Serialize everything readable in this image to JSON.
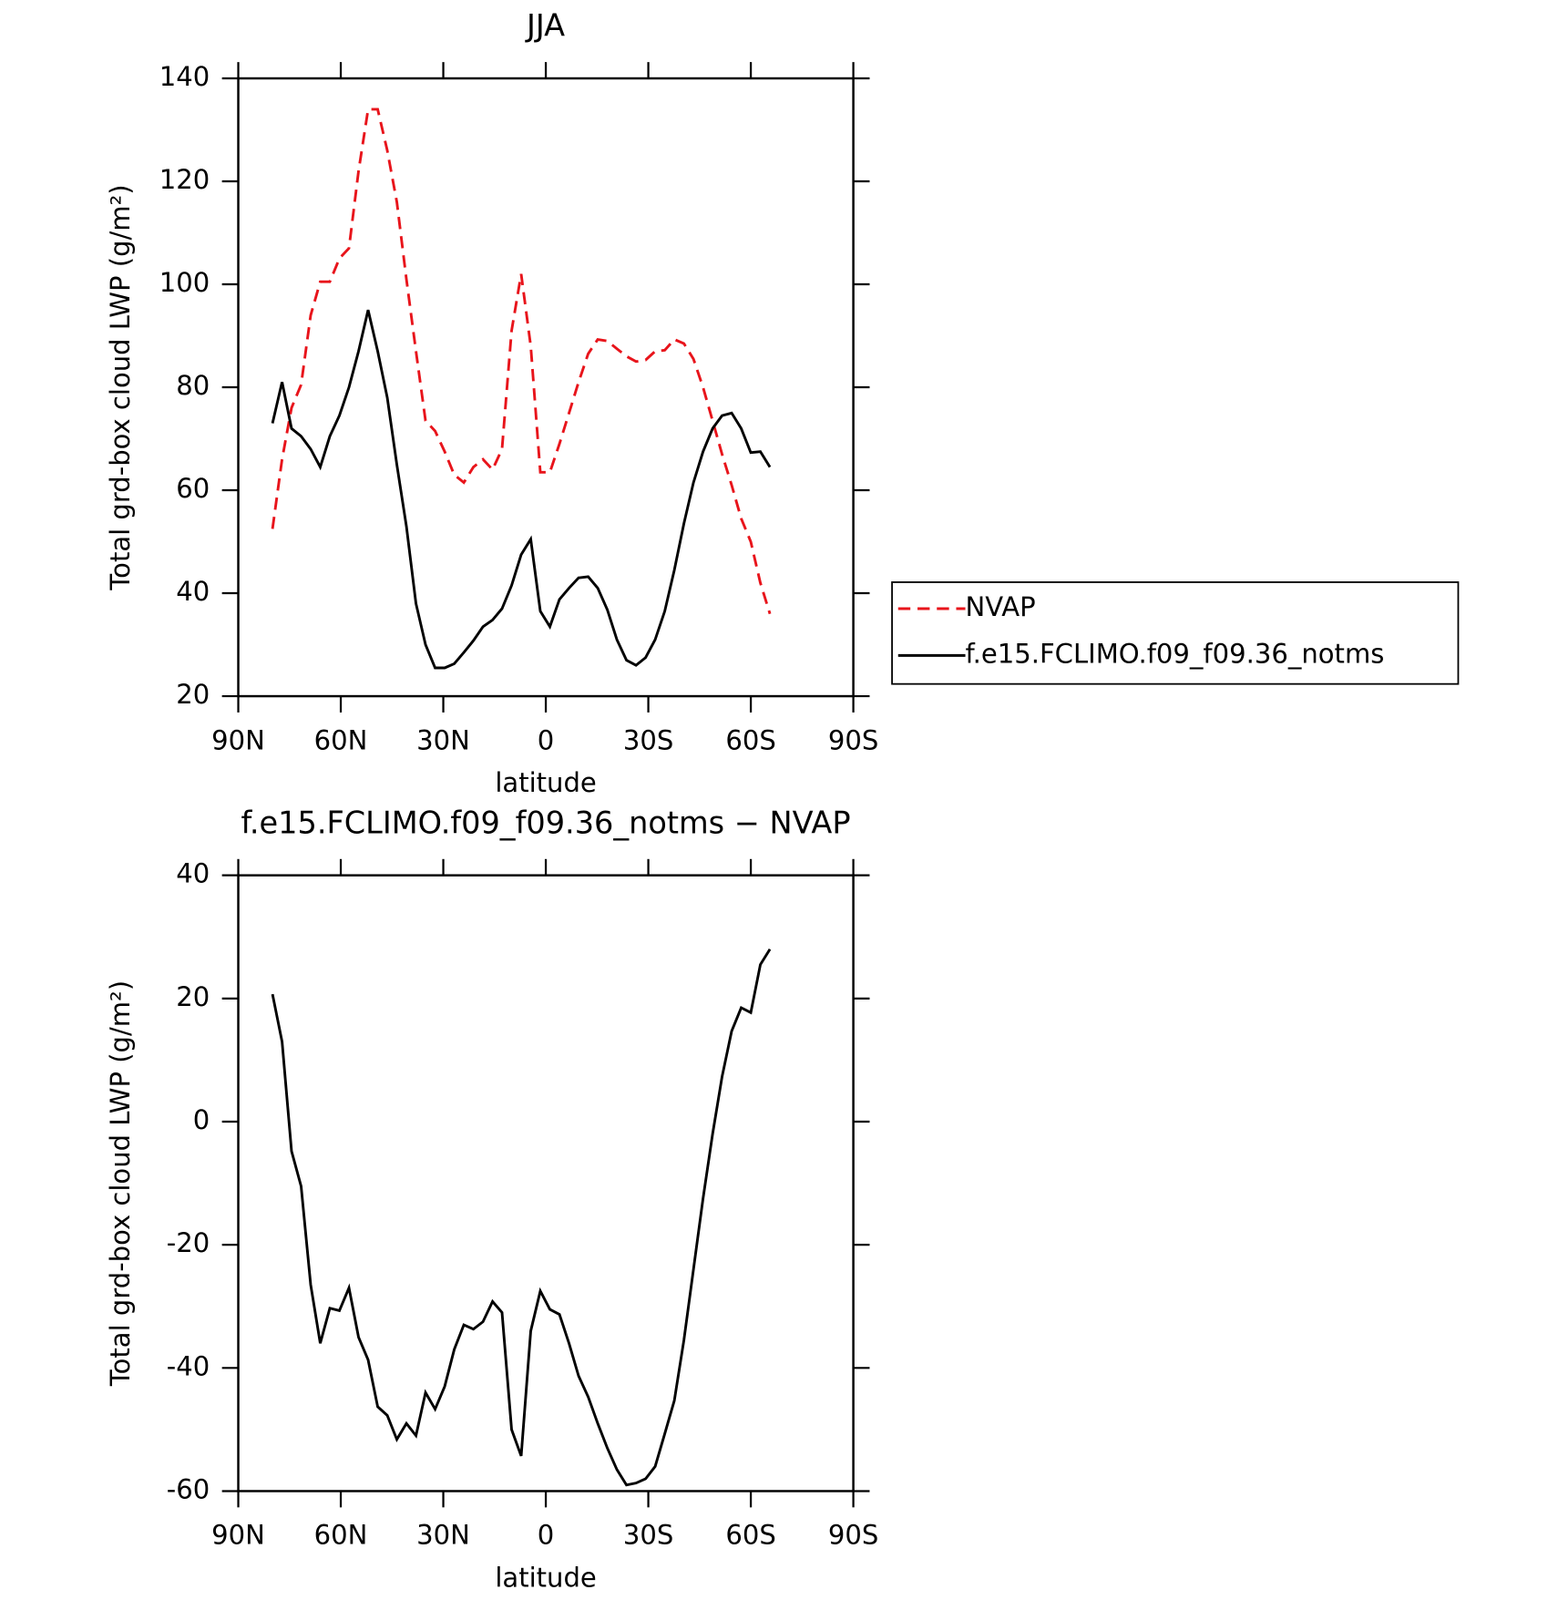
{
  "chart_data": [
    {
      "type": "line",
      "title": "JJA",
      "xlabel": "latitude",
      "ylabel": "Total grd-box cloud LWP (g/m²)",
      "x": [
        80,
        77.2,
        74.4,
        71.6,
        68.8,
        66,
        63.2,
        60.4,
        57.6,
        54.8,
        52,
        49.2,
        46.4,
        43.6,
        40.8,
        38,
        35.2,
        32.4,
        29.6,
        26.8,
        24,
        21.2,
        18.4,
        15.6,
        12.8,
        10,
        7.2,
        4.4,
        1.6,
        -1.2,
        -4,
        -6.8,
        -9.6,
        -12.4,
        -15.2,
        -18,
        -20.8,
        -23.6,
        -26.4,
        -29.2,
        -32,
        -34.8,
        -37.6,
        -40.4,
        -43.2,
        -46,
        -48.8,
        -51.6,
        -54.4,
        -57.2,
        -60,
        -62.8,
        -65.6
      ],
      "series": [
        {
          "name": "NVAP",
          "color": "#e8141b",
          "linestyle": "dashed",
          "values": [
            52.5,
            66,
            76,
            80.5,
            94,
            100.5,
            100.5,
            105,
            107,
            122,
            134,
            134,
            126,
            116,
            101,
            87,
            73.5,
            71.5,
            67.5,
            63,
            61.5,
            64.5,
            66,
            64,
            68,
            91,
            102,
            88,
            63.5,
            63.5,
            69,
            75,
            81,
            86.5,
            89.3,
            89,
            87.5,
            86,
            85,
            85.3,
            87,
            87.2,
            89.3,
            88.5,
            85.5,
            80,
            73.5,
            67,
            61,
            54.5,
            50,
            42,
            36
          ]
        },
        {
          "name": "f.e15.FCLIMO.f09_f09.36_notms",
          "color": "#000000",
          "linestyle": "solid",
          "values": [
            73,
            81,
            72,
            70.5,
            68,
            64.5,
            70.5,
            74.5,
            80,
            87,
            95,
            87,
            78,
            65,
            53,
            38,
            30,
            25.5,
            25.5,
            26.3,
            28.5,
            30.8,
            33.5,
            34.8,
            37,
            41.5,
            47.5,
            50.5,
            36.5,
            33.5,
            38.8,
            41,
            43,
            43.2,
            41,
            36.8,
            31,
            27,
            26,
            27.5,
            31,
            36.5,
            44.5,
            53.5,
            61.5,
            67.5,
            72,
            74.5,
            75,
            72,
            67.3,
            67.5,
            64.5
          ]
        }
      ],
      "xlim": [
        90,
        -90
      ],
      "xticks": [
        {
          "value": 90,
          "label": "90N"
        },
        {
          "value": 60,
          "label": "60N"
        },
        {
          "value": 30,
          "label": "30N"
        },
        0,
        {
          "value": -30,
          "label": "30S"
        },
        {
          "value": -60,
          "label": "60S"
        },
        {
          "value": -90,
          "label": "90S"
        }
      ],
      "ylim": [
        20,
        140
      ],
      "yticks": [
        20,
        40,
        60,
        80,
        100,
        120,
        140
      ],
      "legend": "right"
    },
    {
      "type": "line",
      "title": "f.e15.FCLIMO.f09_f09.36_notms − NVAP",
      "xlabel": "latitude",
      "ylabel": "Total grd-box cloud LWP (g/m²)",
      "x": [
        80,
        77.2,
        74.4,
        71.6,
        68.8,
        66,
        63.2,
        60.4,
        57.6,
        54.8,
        52,
        49.2,
        46.4,
        43.6,
        40.8,
        38,
        35.2,
        32.4,
        29.6,
        26.8,
        24,
        21.2,
        18.4,
        15.6,
        12.8,
        10,
        7.2,
        4.4,
        1.6,
        -1.2,
        -4,
        -6.8,
        -9.6,
        -12.4,
        -15.2,
        -18,
        -20.8,
        -23.6,
        -26.4,
        -29.2,
        -32,
        -34.8,
        -37.6,
        -40.4,
        -43.2,
        -46,
        -48.8,
        -51.6,
        -54.4,
        -57.2,
        -60,
        -62.8,
        -65.6
      ],
      "series": [
        {
          "color": "#000000",
          "linestyle": "solid",
          "values": [
            20.7,
            13,
            -4.8,
            -10.5,
            -26.5,
            -36,
            -30.3,
            -30.7,
            -27,
            -35,
            -38.7,
            -46.3,
            -47.7,
            -51.6,
            -49,
            -51,
            -44,
            -46.7,
            -43,
            -37,
            -33,
            -33.7,
            -32.5,
            -29.2,
            -31,
            -50,
            -54.3,
            -34,
            -27.5,
            -30.5,
            -31.3,
            -36,
            -41.3,
            -44.7,
            -49,
            -53,
            -56.5,
            -59,
            -58.7,
            -58,
            -56,
            -50.7,
            -45.3,
            -35.5,
            -24,
            -12.5,
            -2,
            7.3,
            14.7,
            18.5,
            17.7,
            25.5,
            28
          ]
        }
      ],
      "xlim": [
        90,
        -90
      ],
      "xticks": [
        {
          "value": 90,
          "label": "90N"
        },
        {
          "value": 60,
          "label": "60N"
        },
        {
          "value": 30,
          "label": "30N"
        },
        0,
        {
          "value": -30,
          "label": "30S"
        },
        {
          "value": -60,
          "label": "60S"
        },
        {
          "value": -90,
          "label": "90S"
        }
      ],
      "ylim": [
        -60,
        40
      ],
      "yticks": [
        -60,
        -40,
        -20,
        0,
        20,
        40
      ]
    }
  ]
}
